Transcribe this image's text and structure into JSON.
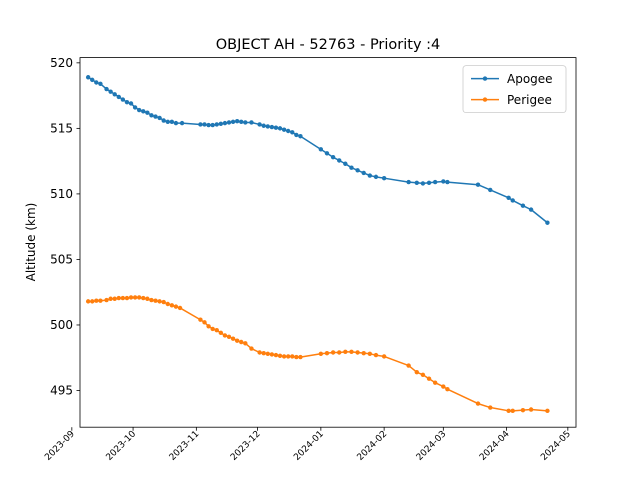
{
  "chart_data": {
    "type": "line",
    "title": "OBJECT AH - 52763 - Priority :4",
    "xlabel": "",
    "ylabel": "Altitude (km)",
    "xlim": [
      "2023-09-05",
      "2024-05-05"
    ],
    "ylim": [
      492.2,
      520.4
    ],
    "x_ticks": [
      "2023-09",
      "2023-10",
      "2023-11",
      "2023-12",
      "2024-01",
      "2024-02",
      "2024-03",
      "2024-04",
      "2024-05"
    ],
    "y_ticks": [
      495,
      500,
      505,
      510,
      515,
      520
    ],
    "legend_position": "top-right",
    "grid": false,
    "series": [
      {
        "name": "Apogee",
        "color": "#1f77b4",
        "marker": "circle",
        "points": [
          [
            "2023-09-09",
            518.9
          ],
          [
            "2023-09-11",
            518.7
          ],
          [
            "2023-09-13",
            518.5
          ],
          [
            "2023-09-15",
            518.4
          ],
          [
            "2023-09-18",
            518.0
          ],
          [
            "2023-09-20",
            517.8
          ],
          [
            "2023-09-22",
            517.6
          ],
          [
            "2023-09-24",
            517.4
          ],
          [
            "2023-09-26",
            517.2
          ],
          [
            "2023-09-28",
            517.0
          ],
          [
            "2023-09-30",
            516.9
          ],
          [
            "2023-10-02",
            516.6
          ],
          [
            "2023-10-04",
            516.4
          ],
          [
            "2023-10-06",
            516.3
          ],
          [
            "2023-10-08",
            516.2
          ],
          [
            "2023-10-10",
            516.0
          ],
          [
            "2023-10-12",
            515.9
          ],
          [
            "2023-10-14",
            515.8
          ],
          [
            "2023-10-16",
            515.6
          ],
          [
            "2023-10-18",
            515.5
          ],
          [
            "2023-10-20",
            515.5
          ],
          [
            "2023-10-22",
            515.4
          ],
          [
            "2023-10-25",
            515.4
          ],
          [
            "2023-11-03",
            515.3
          ],
          [
            "2023-11-05",
            515.3
          ],
          [
            "2023-11-07",
            515.25
          ],
          [
            "2023-11-09",
            515.25
          ],
          [
            "2023-11-11",
            515.3
          ],
          [
            "2023-11-13",
            515.35
          ],
          [
            "2023-11-15",
            515.4
          ],
          [
            "2023-11-17",
            515.45
          ],
          [
            "2023-11-19",
            515.5
          ],
          [
            "2023-11-21",
            515.55
          ],
          [
            "2023-11-23",
            515.5
          ],
          [
            "2023-11-25",
            515.45
          ],
          [
            "2023-11-28",
            515.45
          ],
          [
            "2023-12-02",
            515.3
          ],
          [
            "2023-12-04",
            515.2
          ],
          [
            "2023-12-06",
            515.15
          ],
          [
            "2023-12-08",
            515.1
          ],
          [
            "2023-12-10",
            515.05
          ],
          [
            "2023-12-12",
            515.0
          ],
          [
            "2023-12-14",
            514.9
          ],
          [
            "2023-12-16",
            514.8
          ],
          [
            "2023-12-18",
            514.7
          ],
          [
            "2023-12-20",
            514.5
          ],
          [
            "2023-12-22",
            514.4
          ],
          [
            "2024-01-01",
            513.4
          ],
          [
            "2024-01-04",
            513.1
          ],
          [
            "2024-01-07",
            512.8
          ],
          [
            "2024-01-10",
            512.55
          ],
          [
            "2024-01-13",
            512.3
          ],
          [
            "2024-01-16",
            512.0
          ],
          [
            "2024-01-19",
            511.8
          ],
          [
            "2024-01-22",
            511.6
          ],
          [
            "2024-01-25",
            511.4
          ],
          [
            "2024-01-28",
            511.3
          ],
          [
            "2024-02-01",
            511.2
          ],
          [
            "2024-02-13",
            510.9
          ],
          [
            "2024-02-17",
            510.85
          ],
          [
            "2024-02-20",
            510.8
          ],
          [
            "2024-02-23",
            510.85
          ],
          [
            "2024-02-26",
            510.9
          ],
          [
            "2024-03-01",
            510.95
          ],
          [
            "2024-03-03",
            510.9
          ],
          [
            "2024-03-18",
            510.7
          ],
          [
            "2024-03-24",
            510.3
          ],
          [
            "2024-04-02",
            509.7
          ],
          [
            "2024-04-04",
            509.5
          ],
          [
            "2024-04-09",
            509.1
          ],
          [
            "2024-04-13",
            508.8
          ],
          [
            "2024-04-21",
            507.8
          ]
        ]
      },
      {
        "name": "Perigee",
        "color": "#ff7f0e",
        "marker": "circle",
        "points": [
          [
            "2023-09-09",
            501.8
          ],
          [
            "2023-09-11",
            501.8
          ],
          [
            "2023-09-13",
            501.85
          ],
          [
            "2023-09-15",
            501.85
          ],
          [
            "2023-09-18",
            501.9
          ],
          [
            "2023-09-20",
            502.0
          ],
          [
            "2023-09-22",
            502.0
          ],
          [
            "2023-09-24",
            502.05
          ],
          [
            "2023-09-26",
            502.05
          ],
          [
            "2023-09-28",
            502.05
          ],
          [
            "2023-09-30",
            502.1
          ],
          [
            "2023-10-02",
            502.1
          ],
          [
            "2023-10-04",
            502.1
          ],
          [
            "2023-10-06",
            502.05
          ],
          [
            "2023-10-08",
            502.0
          ],
          [
            "2023-10-10",
            501.9
          ],
          [
            "2023-10-12",
            501.85
          ],
          [
            "2023-10-14",
            501.8
          ],
          [
            "2023-10-16",
            501.75
          ],
          [
            "2023-10-18",
            501.6
          ],
          [
            "2023-10-20",
            501.5
          ],
          [
            "2023-10-22",
            501.4
          ],
          [
            "2023-10-24",
            501.3
          ],
          [
            "2023-11-03",
            500.4
          ],
          [
            "2023-11-05",
            500.2
          ],
          [
            "2023-11-07",
            499.9
          ],
          [
            "2023-11-09",
            499.7
          ],
          [
            "2023-11-11",
            499.6
          ],
          [
            "2023-11-13",
            499.4
          ],
          [
            "2023-11-15",
            499.2
          ],
          [
            "2023-11-17",
            499.1
          ],
          [
            "2023-11-19",
            498.95
          ],
          [
            "2023-11-21",
            498.8
          ],
          [
            "2023-11-23",
            498.7
          ],
          [
            "2023-11-25",
            498.6
          ],
          [
            "2023-11-28",
            498.2
          ],
          [
            "2023-12-02",
            497.9
          ],
          [
            "2023-12-04",
            497.85
          ],
          [
            "2023-12-06",
            497.8
          ],
          [
            "2023-12-08",
            497.75
          ],
          [
            "2023-12-10",
            497.7
          ],
          [
            "2023-12-12",
            497.65
          ],
          [
            "2023-12-14",
            497.6
          ],
          [
            "2023-12-16",
            497.6
          ],
          [
            "2023-12-18",
            497.6
          ],
          [
            "2023-12-20",
            497.55
          ],
          [
            "2023-12-22",
            497.55
          ],
          [
            "2024-01-01",
            497.8
          ],
          [
            "2024-01-04",
            497.85
          ],
          [
            "2024-01-07",
            497.9
          ],
          [
            "2024-01-10",
            497.9
          ],
          [
            "2024-01-13",
            497.95
          ],
          [
            "2024-01-16",
            497.95
          ],
          [
            "2024-01-19",
            497.9
          ],
          [
            "2024-01-22",
            497.85
          ],
          [
            "2024-01-25",
            497.8
          ],
          [
            "2024-01-28",
            497.7
          ],
          [
            "2024-02-01",
            497.6
          ],
          [
            "2024-02-13",
            496.9
          ],
          [
            "2024-02-17",
            496.4
          ],
          [
            "2024-02-20",
            496.2
          ],
          [
            "2024-02-23",
            495.9
          ],
          [
            "2024-02-26",
            495.6
          ],
          [
            "2024-03-01",
            495.3
          ],
          [
            "2024-03-03",
            495.1
          ],
          [
            "2024-03-18",
            494.0
          ],
          [
            "2024-03-24",
            493.7
          ],
          [
            "2024-04-02",
            493.45
          ],
          [
            "2024-04-04",
            493.45
          ],
          [
            "2024-04-09",
            493.5
          ],
          [
            "2024-04-13",
            493.55
          ],
          [
            "2024-04-21",
            493.45
          ]
        ]
      }
    ]
  }
}
